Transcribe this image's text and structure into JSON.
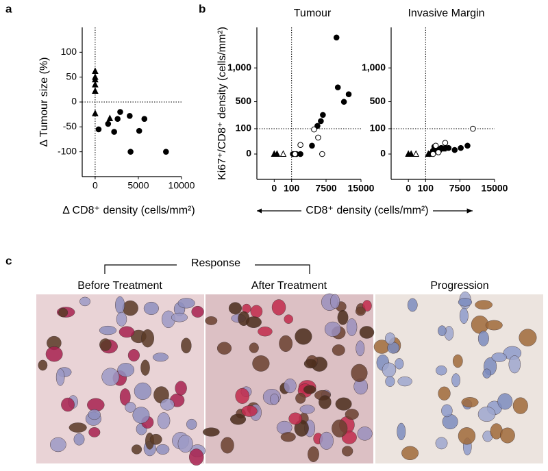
{
  "panel_labels": [
    "a",
    "b",
    "c"
  ],
  "chart_data": [
    {
      "type": "scatter",
      "ylabel": "Δ Tumour size (%)",
      "xlabel": "Δ CD8⁺ density (cells/mm²)",
      "xlim": [
        -1500,
        10000
      ],
      "ylim": [
        -150,
        150
      ],
      "xticks": [
        0,
        5000,
        10000
      ],
      "yticks": [
        -100,
        -50,
        0,
        50,
        100
      ],
      "reference_lines": {
        "x": 0,
        "y": 0
      },
      "series": [
        {
          "marker": "triangle",
          "filled": true,
          "color": "#000",
          "x": [
            0,
            0,
            0,
            0,
            0,
            0,
            1700
          ],
          "values": [
            62,
            50,
            45,
            35,
            22,
            -23,
            -33
          ]
        },
        {
          "marker": "circle",
          "filled": true,
          "color": "#000",
          "x": [
            400,
            1500,
            2200,
            2600,
            2900,
            4000,
            4100,
            5100,
            5700,
            8200
          ],
          "values": [
            -55,
            -44,
            -60,
            -34,
            -20,
            -28,
            -100,
            -58,
            -34,
            -100
          ]
        }
      ]
    },
    {
      "type": "scatter",
      "title": "Tumour",
      "ylabel": "Ki67⁺/CD8⁺ density (cells/mm²)",
      "xlabel": "CD8⁺ density (cells/mm²)",
      "xlim": [
        -100,
        15000
      ],
      "ylim": [
        -100,
        1600
      ],
      "xticks": [
        0,
        100,
        7500,
        15000
      ],
      "yticks": [
        0,
        100,
        500,
        {
          "value": 1000,
          "label": "1,000"
        }
      ],
      "reference_lines": {
        "x": 100,
        "y": 100
      },
      "split_scale": true,
      "series": [
        {
          "marker": "triangle",
          "filled": true,
          "color": "#000",
          "x": [
            0,
            16
          ],
          "values": [
            0,
            0
          ]
        },
        {
          "marker": "triangle",
          "filled": false,
          "color": "#000",
          "x": [
            52
          ],
          "values": [
            0
          ]
        },
        {
          "marker": "circle",
          "filled": true,
          "color": "#000",
          "x": [
            392,
            1122,
            2000,
            4480,
            5650,
            6380,
            6820,
            11340,
            9740,
            10030,
            12360
          ],
          "values": [
            0,
            0,
            0,
            33,
            141,
            212,
            304,
            498,
            1450,
            712,
            610
          ]
        },
        {
          "marker": "circle",
          "filled": false,
          "color": "#000",
          "x": [
            830,
            2000,
            4920,
            5800,
            6670
          ],
          "values": [
            0,
            36,
            97,
            65,
            0
          ]
        }
      ]
    },
    {
      "type": "scatter",
      "title": "Invasive Margin",
      "xlim": [
        -100,
        15000
      ],
      "ylim": [
        -100,
        1600
      ],
      "xticks": [
        0,
        100,
        7500,
        15000
      ],
      "yticks": [
        0,
        100,
        500,
        {
          "value": 1000,
          "label": "1,000"
        }
      ],
      "reference_lines": {
        "x": 100,
        "y": 100
      },
      "split_scale": true,
      "series": [
        {
          "marker": "triangle",
          "filled": true,
          "color": "#000",
          "x": [
            0,
            16,
            684,
            3900
          ],
          "values": [
            0,
            0,
            0,
            21
          ]
        },
        {
          "marker": "triangle",
          "filled": false,
          "color": "#000",
          "x": [
            44
          ],
          "values": [
            0
          ]
        },
        {
          "marker": "circle",
          "filled": true,
          "color": "#000",
          "x": [
            976,
            1700,
            1990,
            2440,
            3020,
            3460,
            4480,
            5060,
            6380,
            7700,
            9150
          ],
          "values": [
            0,
            13,
            29,
            21,
            13,
            24,
            24,
            24,
            16,
            24,
            33
          ]
        },
        {
          "marker": "circle",
          "filled": false,
          "color": "#000",
          "x": [
            1700,
            2290,
            2870,
            4330,
            10320
          ],
          "values": [
            0,
            33,
            7,
            44,
            100
          ]
        }
      ]
    }
  ],
  "micrographs": {
    "group_label": "Response",
    "captions": [
      "Before Treatment",
      "After Treatment",
      "Progression"
    ]
  }
}
